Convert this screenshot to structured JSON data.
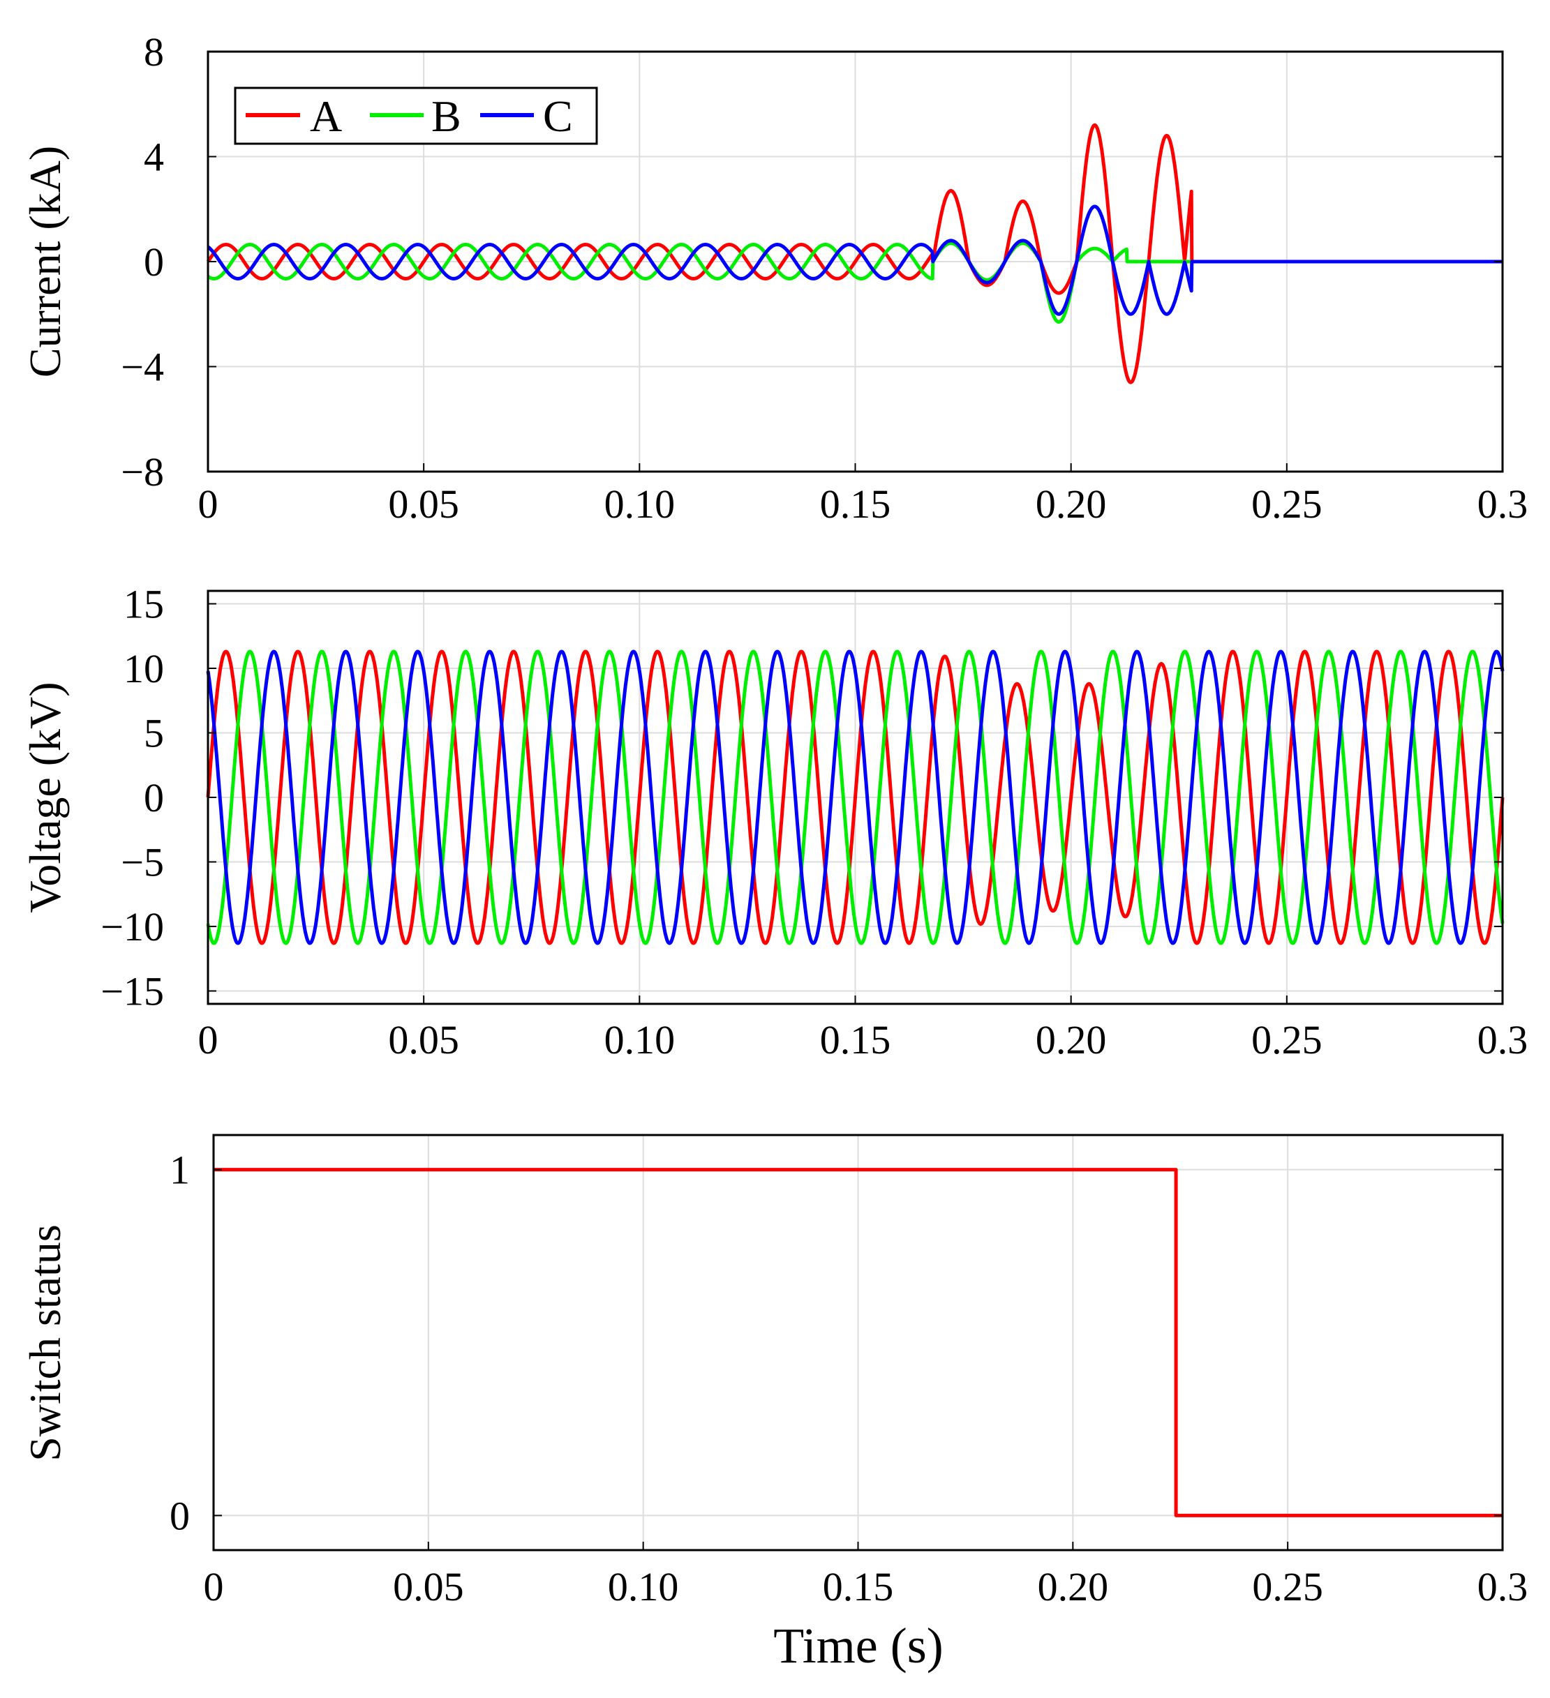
{
  "chart_data": [
    {
      "id": "current",
      "type": "line",
      "ylabel": "Current (kA)",
      "xlabel": "",
      "xlim": [
        0,
        0.3
      ],
      "ylim": [
        -8,
        8
      ],
      "xticks": [
        0,
        0.05,
        0.1,
        0.15,
        0.2,
        0.25,
        0.3
      ],
      "xtick_labels": [
        "0",
        "0.05",
        "0.10",
        "0.15",
        "0.20",
        "0.25",
        "0.3"
      ],
      "yticks": [
        8,
        4,
        0,
        -4,
        -8
      ],
      "ytick_labels": [
        "8",
        "4",
        "0",
        "−4",
        "−8"
      ],
      "grid": true,
      "legend": {
        "placement": "top-left",
        "entries": [
          "A",
          "B",
          "C"
        ]
      },
      "series": [
        {
          "name": "A",
          "color": "#ff0000",
          "freq_hz": 60,
          "phase_deg": 0,
          "amplitude_normal": 0.65,
          "fault_start_s": 0.168,
          "fault_peaks": [
            2.7,
            -0.9,
            2.3,
            -1.2,
            5.2,
            -4.6,
            4.8
          ],
          "cleared_s": 0.228
        },
        {
          "name": "B",
          "color": "#00ee00",
          "freq_hz": 60,
          "phase_deg": -120,
          "amplitude_normal": 0.65,
          "fault_start_s": 0.168,
          "fault_peaks": [
            0.7,
            -0.7,
            0.7,
            -2.3,
            0.5
          ],
          "cleared_s": 0.213
        },
        {
          "name": "C",
          "color": "#0000ff",
          "freq_hz": 60,
          "phase_deg": 120,
          "amplitude_normal": 0.65,
          "fault_start_s": 0.168,
          "fault_peaks": [
            0.8,
            -0.8,
            0.8,
            -2.0,
            2.1,
            -2.0
          ],
          "cleared_s": 0.228
        }
      ]
    },
    {
      "id": "voltage",
      "type": "line",
      "ylabel": "Voltage (kV)",
      "xlabel": "",
      "xlim": [
        0,
        0.3
      ],
      "ylim": [
        -16,
        16
      ],
      "xticks": [
        0,
        0.05,
        0.1,
        0.15,
        0.2,
        0.25,
        0.3
      ],
      "xtick_labels": [
        "0",
        "0.05",
        "0.10",
        "0.15",
        "0.20",
        "0.25",
        "0.3"
      ],
      "yticks": [
        15,
        10,
        5,
        0,
        -5,
        -10,
        -15
      ],
      "ytick_labels": [
        "15",
        "10",
        "5",
        "0",
        "−5",
        "−10",
        "−15"
      ],
      "grid": true,
      "series": [
        {
          "name": "A",
          "color": "#ff0000",
          "freq_hz": 60,
          "phase_deg": 0,
          "amplitude": 11.3,
          "sag_start_s": 0.168,
          "sag_end_s": 0.228,
          "sag_amplitude": 8.8
        },
        {
          "name": "B",
          "color": "#00ee00",
          "freq_hz": 60,
          "phase_deg": -120,
          "amplitude": 11.3
        },
        {
          "name": "C",
          "color": "#0000ff",
          "freq_hz": 60,
          "phase_deg": 120,
          "amplitude": 11.3
        }
      ]
    },
    {
      "id": "switch",
      "type": "line",
      "ylabel": "Switch status",
      "xlabel": "Time (s)",
      "xlim": [
        0,
        0.3
      ],
      "ylim": [
        -0.1,
        1.1
      ],
      "xticks": [
        0,
        0.05,
        0.1,
        0.15,
        0.2,
        0.25,
        0.3
      ],
      "xtick_labels": [
        "0",
        "0.05",
        "0.10",
        "0.15",
        "0.20",
        "0.25",
        "0.3"
      ],
      "yticks": [
        1,
        0
      ],
      "ytick_labels": [
        "1",
        "0"
      ],
      "grid": true,
      "series": [
        {
          "name": "Switch",
          "color": "#ff0000",
          "x": [
            0,
            0.224,
            0.224,
            0.3
          ],
          "y": [
            1,
            1,
            0,
            0
          ]
        }
      ]
    }
  ]
}
